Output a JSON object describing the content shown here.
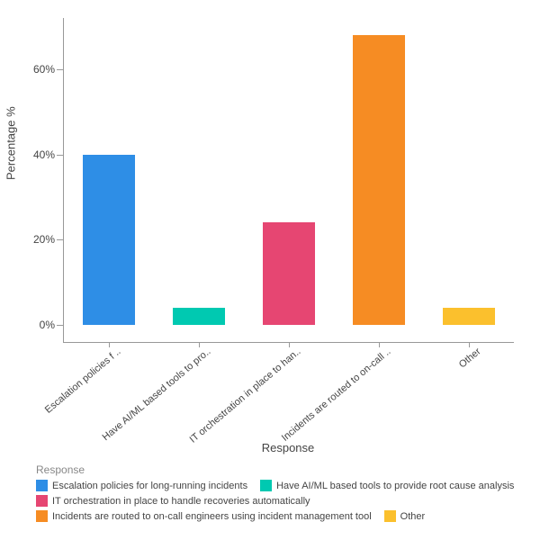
{
  "chart": {
    "type": "bar",
    "background_color": "#ffffff",
    "x_axis": {
      "title": "Response",
      "title_fontsize": 13,
      "categories_short": [
        "Escalation policies f ..",
        "Have AI/ML based tools to pro..",
        "IT orchestration in place to han..",
        "Incidents are routed to on-call ..",
        "Other"
      ],
      "label_fontsize": 11,
      "label_rotation_deg": -40
    },
    "y_axis": {
      "title": "Percentage %",
      "title_fontsize": 13,
      "min": -4,
      "max": 72,
      "ticks": [
        0,
        20,
        40,
        60
      ],
      "tick_labels": [
        "0%",
        "20%",
        "40%",
        "60%"
      ],
      "tick_fontsize": 12
    },
    "series": {
      "values": [
        40,
        4,
        24,
        68,
        4
      ],
      "colors": [
        "#2e8ee6",
        "#00c9b1",
        "#e64672",
        "#f68c23",
        "#fbc02d"
      ],
      "bar_width_fraction": 0.58
    },
    "legend": {
      "title": "Response",
      "items": [
        {
          "label": "Escalation policies for long-running incidents",
          "color": "#2e8ee6"
        },
        {
          "label": "Have AI/ML based tools to provide root cause analysis",
          "color": "#00c9b1"
        },
        {
          "label": "IT orchestration in place to handle recoveries automatically",
          "color": "#e64672"
        },
        {
          "label": "Incidents are routed to on-call engineers using incident management tool",
          "color": "#f68c23"
        },
        {
          "label": "Other",
          "color": "#fbc02d"
        }
      ],
      "fontsize": 11
    },
    "axis_color": "#999999"
  }
}
